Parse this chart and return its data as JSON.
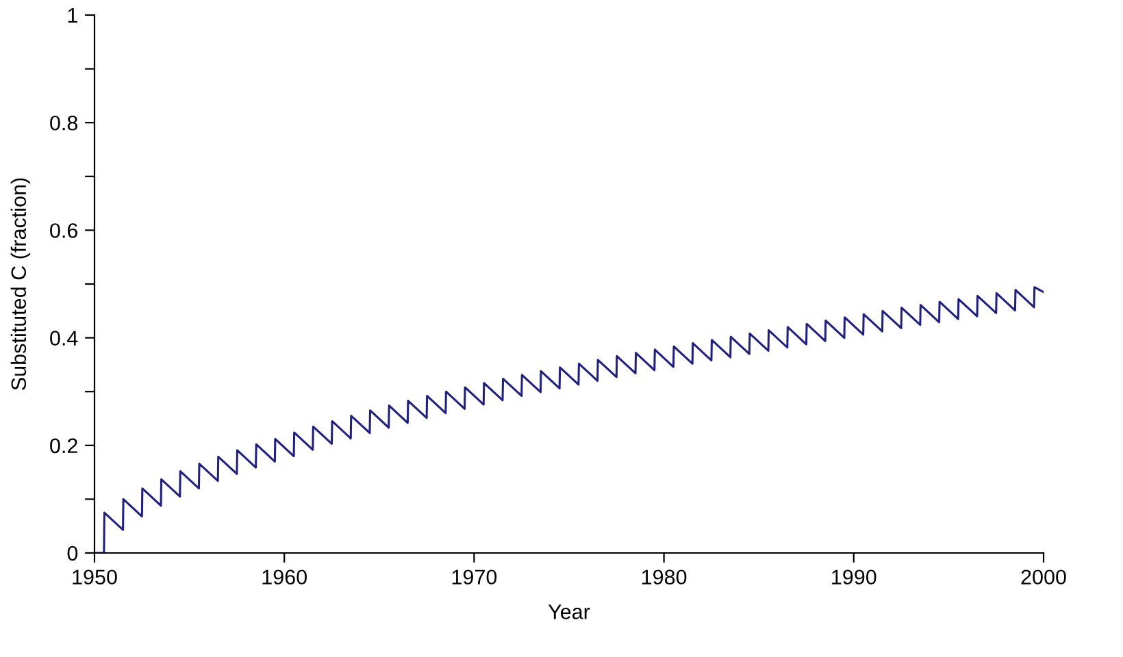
{
  "chart_data": {
    "type": "line",
    "xlabel": "Year",
    "ylabel": "Substituted C (fraction)",
    "xlim": [
      1950,
      2000
    ],
    "xticks": [
      1950,
      1960,
      1970,
      1980,
      1990,
      2000
    ],
    "ylim": [
      0,
      1
    ],
    "yticks": [
      0,
      {
        "value": 0.1,
        "label": null
      },
      0.2,
      {
        "value": 0.3,
        "label": null
      },
      0.4,
      {
        "value": 0.5,
        "label": null
      },
      0.6,
      {
        "value": 0.7,
        "label": null
      },
      0.8,
      {
        "value": 0.9,
        "label": null
      },
      1
    ],
    "grid": false,
    "line_style": "solid",
    "marker": "none",
    "series": [
      {
        "color": "#20207f",
        "x": [
          1950,
          1950.5,
          1950.52,
          1951.5,
          1951.52,
          1952.5,
          1952.52,
          1953.5,
          1953.52,
          1954.5,
          1954.52,
          1955.5,
          1955.52,
          1956.5,
          1956.52,
          1957.5,
          1957.52,
          1958.5,
          1958.52,
          1959.5,
          1959.52,
          1960.5,
          1960.52,
          1961.5,
          1961.52,
          1962.5,
          1962.52,
          1963.5,
          1963.52,
          1964.5,
          1964.52,
          1965.5,
          1965.52,
          1966.5,
          1966.52,
          1967.5,
          1967.52,
          1968.5,
          1968.52,
          1969.5,
          1969.52,
          1970.5,
          1970.52,
          1971.5,
          1971.52,
          1972.5,
          1972.52,
          1973.5,
          1973.52,
          1974.5,
          1974.52,
          1975.5,
          1975.52,
          1976.5,
          1976.52,
          1977.5,
          1977.52,
          1978.5,
          1978.52,
          1979.5,
          1979.52,
          1980.5,
          1980.52,
          1981.5,
          1981.52,
          1982.5,
          1982.52,
          1983.5,
          1983.52,
          1984.5,
          1984.52,
          1985.5,
          1985.52,
          1986.5,
          1986.52,
          1987.5,
          1987.52,
          1988.5,
          1988.52,
          1989.5,
          1989.52,
          1990.5,
          1990.52,
          1991.5,
          1991.52,
          1992.5,
          1992.52,
          1993.5,
          1993.52,
          1994.5,
          1994.52,
          1995.5,
          1995.52,
          1996.5,
          1996.52,
          1997.5,
          1997.52,
          1998.5,
          1998.52,
          1999.5,
          1999.52,
          2000
        ],
        "values": [
          0,
          0,
          0.075,
          0.043,
          0.1,
          0.068,
          0.12,
          0.088,
          0.137,
          0.105,
          0.152,
          0.12,
          0.166,
          0.134,
          0.179,
          0.147,
          0.191,
          0.159,
          0.202,
          0.17,
          0.212,
          0.18,
          0.224,
          0.192,
          0.235,
          0.203,
          0.245,
          0.213,
          0.255,
          0.223,
          0.265,
          0.233,
          0.274,
          0.242,
          0.283,
          0.251,
          0.292,
          0.26,
          0.3,
          0.268,
          0.308,
          0.276,
          0.316,
          0.284,
          0.324,
          0.292,
          0.331,
          0.299,
          0.338,
          0.306,
          0.345,
          0.313,
          0.352,
          0.32,
          0.359,
          0.327,
          0.366,
          0.334,
          0.372,
          0.34,
          0.378,
          0.346,
          0.384,
          0.352,
          0.39,
          0.358,
          0.396,
          0.364,
          0.402,
          0.37,
          0.408,
          0.376,
          0.414,
          0.382,
          0.42,
          0.388,
          0.426,
          0.394,
          0.432,
          0.4,
          0.438,
          0.406,
          0.444,
          0.412,
          0.45,
          0.418,
          0.456,
          0.424,
          0.461,
          0.429,
          0.467,
          0.435,
          0.472,
          0.44,
          0.478,
          0.446,
          0.483,
          0.451,
          0.489,
          0.457,
          0.494,
          0.485
        ]
      }
    ]
  }
}
